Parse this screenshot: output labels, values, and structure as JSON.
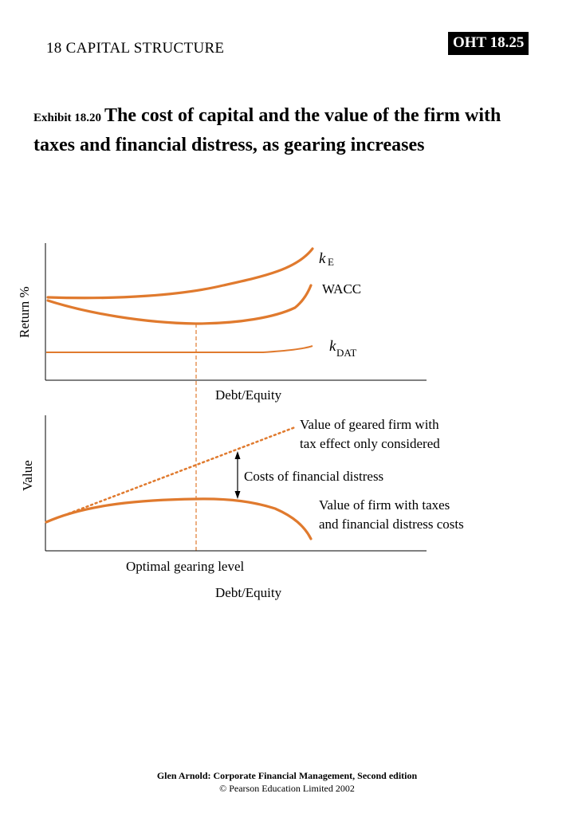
{
  "header": {
    "chapter": "18  CAPITAL STRUCTURE",
    "slide_badge": "OHT 18.25"
  },
  "exhibit": {
    "label": "Exhibit 18.20",
    "title": "The cost of capital and the value of the firm with taxes and financial distress, as gearing increases"
  },
  "top_chart": {
    "y_axis_label": "Return %",
    "x_axis_label": "Debt/Equity",
    "curves": {
      "ke": {
        "symbol": "k",
        "subscript": "E"
      },
      "wacc": {
        "label": "WACC"
      },
      "kdat": {
        "symbol": "k",
        "subscript": "DAT"
      }
    }
  },
  "bottom_chart": {
    "y_axis_label": "Value",
    "x_axis_label": "Debt/Equity",
    "geared_label_line1": "Value of geared firm with",
    "geared_label_line2": "tax effect only considered",
    "distress_costs_label": "Costs of financial distress",
    "firm_value_label_line1": "Value of firm with taxes",
    "firm_value_label_line2": "and financial distress costs",
    "optimal_label": "Optimal gearing level"
  },
  "colors": {
    "curve": "#e07a2e",
    "axis": "#000000",
    "badge_background": "#000000",
    "badge_text": "#ffffff"
  },
  "footer": {
    "line1": "Glen Arnold: Corporate Financial Management, Second edition",
    "line2": "© Pearson Education Limited 2002"
  }
}
